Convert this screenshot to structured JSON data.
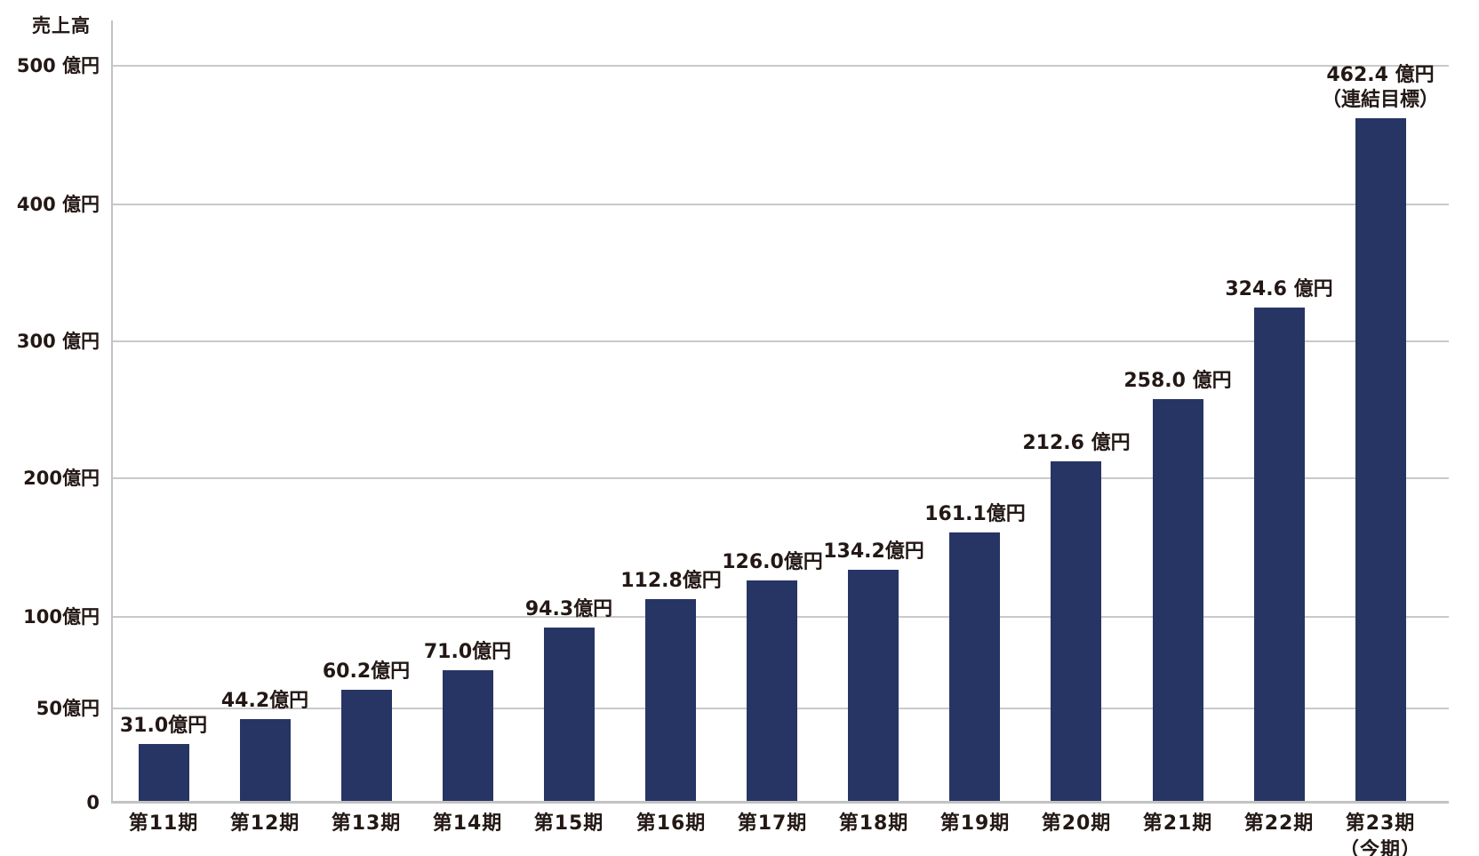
{
  "page": {
    "background_color": "#ffffff",
    "text_color": "#231815"
  },
  "chart_data": {
    "type": "bar",
    "title": "",
    "ylabel": "売上高",
    "xlabel": "",
    "unit": "億円",
    "grid": true,
    "legend": "none",
    "bar_color": "#273564",
    "gridline_color": "#c9c9c9",
    "axis_color": "#c2c2c2",
    "y_axis": {
      "title": "売上高",
      "range": [
        0,
        500
      ],
      "spacing_note": "non-linear: 50億円 steps below 100億円, 100億円 steps above",
      "ticks": [
        {
          "value": 0,
          "label": "0"
        },
        {
          "value": 50,
          "label": "50億円"
        },
        {
          "value": 100,
          "label": "100億円"
        },
        {
          "value": 200,
          "label": "200億円"
        },
        {
          "value": 300,
          "label": "300 億円"
        },
        {
          "value": 400,
          "label": "400 億円"
        },
        {
          "value": 500,
          "label": "500 億円"
        }
      ]
    },
    "bars": [
      {
        "category": "第11期",
        "value": 31.0,
        "label": "31.0億円"
      },
      {
        "category": "第12期",
        "value": 44.2,
        "label": "44.2億円"
      },
      {
        "category": "第13期",
        "value": 60.2,
        "label": "60.2億円"
      },
      {
        "category": "第14期",
        "value": 71.0,
        "label": "71.0億円"
      },
      {
        "category": "第15期",
        "value": 94.3,
        "label": "94.3億円"
      },
      {
        "category": "第16期",
        "value": 112.8,
        "label": "112.8億円"
      },
      {
        "category": "第17期",
        "value": 126.0,
        "label": "126.0億円"
      },
      {
        "category": "第18期",
        "value": 134.2,
        "label": "134.2億円"
      },
      {
        "category": "第19期",
        "value": 161.1,
        "label": "161.1億円"
      },
      {
        "category": "第20期",
        "value": 212.6,
        "label": "212.6 億円"
      },
      {
        "category": "第21期",
        "value": 258.0,
        "label": "258.0 億円"
      },
      {
        "category": "第22期",
        "value": 324.6,
        "label": "324.6 億円"
      },
      {
        "category": "第23期",
        "category_note": "（今期）",
        "value": 462.4,
        "label": "462.4 億円",
        "label_note": "（連結目標）"
      }
    ]
  }
}
